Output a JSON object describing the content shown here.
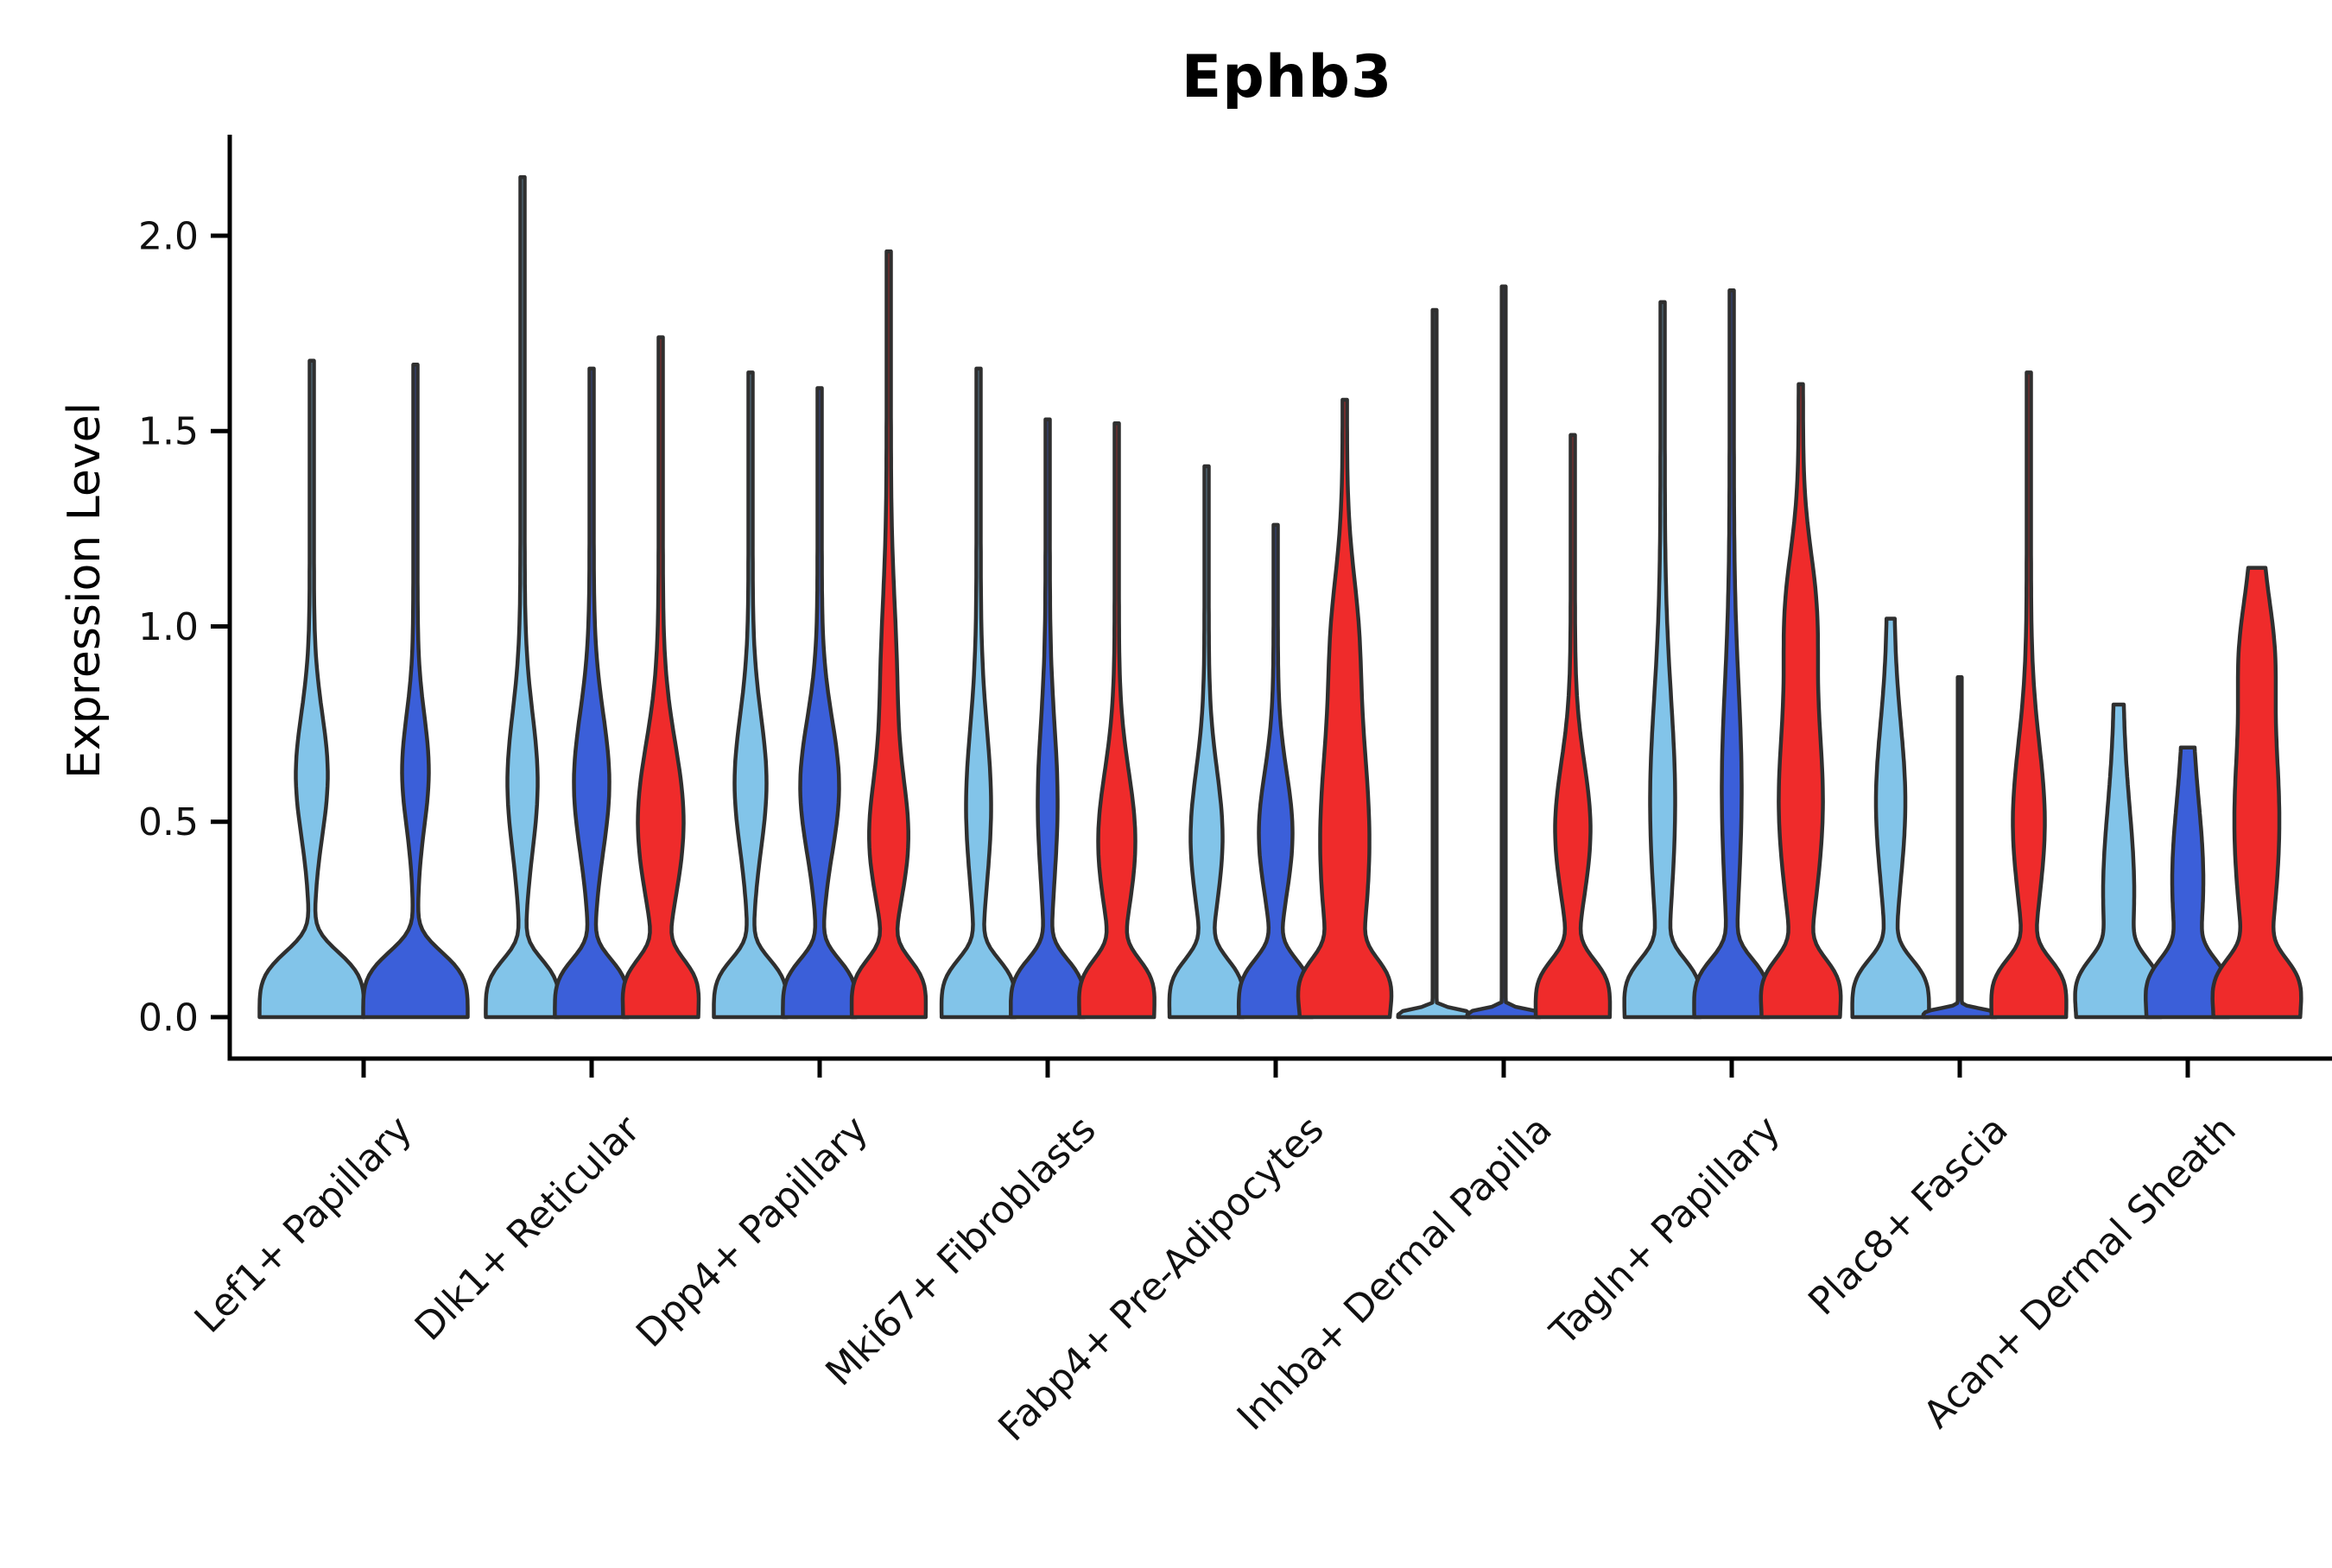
{
  "chart_data": {
    "type": "violin",
    "title": "Ephb3",
    "ylabel": "Expression Level",
    "xlabel": "",
    "ylim": [
      0.0,
      2.26
    ],
    "grid": false,
    "legend": "none",
    "yticks": [
      {
        "value": 0.0,
        "label": "0.0"
      },
      {
        "value": 0.5,
        "label": "0.5"
      },
      {
        "value": 1.0,
        "label": "1.0"
      },
      {
        "value": 1.5,
        "label": "1.5"
      },
      {
        "value": 2.0,
        "label": "2.0"
      }
    ],
    "series_colors": [
      "light_blue",
      "dark_blue",
      "red"
    ],
    "categories": [
      "Lef1+ Papillary",
      "Dlk1+ Reticular",
      "Dpp4+ Papillary",
      "Mki67+ Fibroblasts",
      "Fabp4+ Pre-Adipocytes",
      "Inhba+ Dermal Papilla",
      "Tagln+ Papillary",
      "Plac8+ Fascia",
      "Acan+ Dermal Sheath"
    ],
    "groups": [
      {
        "category": "Lef1+ Papillary",
        "violins": [
          {
            "color": "light_blue",
            "max": 1.68,
            "shape": "violin",
            "base_hw": 58,
            "base_sigma": 0.18,
            "bulges": [
              [
                0.62,
                16,
                0.22
              ]
            ],
            "tip": 2.5
          },
          {
            "color": "dark_blue",
            "max": 1.67,
            "shape": "violin",
            "base_hw": 58,
            "base_sigma": 0.18,
            "bulges": [
              [
                0.63,
                13,
                0.2
              ]
            ],
            "tip": 2.5
          }
        ]
      },
      {
        "category": "Dlk1+ Reticular",
        "violins": [
          {
            "color": "light_blue",
            "max": 2.15,
            "shape": "violin",
            "base_hw": 40,
            "base_sigma": 0.16,
            "bulges": [
              [
                0.6,
                15,
                0.25
              ]
            ],
            "tip": 2.5
          },
          {
            "color": "dark_blue",
            "max": 1.66,
            "shape": "violin",
            "base_hw": 40,
            "base_sigma": 0.16,
            "bulges": [
              [
                0.6,
                18,
                0.25
              ]
            ],
            "tip": 2.5
          },
          {
            "color": "red",
            "max": 1.74,
            "shape": "violin",
            "base_hw": 40,
            "base_sigma": 0.16,
            "bulges": [
              [
                0.5,
                24,
                0.28
              ]
            ],
            "tip": 2.5
          }
        ]
      },
      {
        "category": "Dpp4+ Papillary",
        "violins": [
          {
            "color": "light_blue",
            "max": 1.65,
            "shape": "violin",
            "base_hw": 40,
            "base_sigma": 0.16,
            "bulges": [
              [
                0.6,
                16,
                0.24
              ]
            ],
            "tip": 2.5
          },
          {
            "color": "dark_blue",
            "max": 1.61,
            "shape": "violin",
            "base_hw": 40,
            "base_sigma": 0.16,
            "bulges": [
              [
                0.59,
                20,
                0.24
              ]
            ],
            "tip": 2.5
          },
          {
            "color": "red",
            "max": 1.96,
            "shape": "violin",
            "base_hw": 40,
            "base_sigma": 0.16,
            "bulges": [
              [
                0.45,
                19,
                0.22
              ],
              [
                0.85,
                7,
                0.3
              ]
            ],
            "tip": 2.5
          }
        ]
      },
      {
        "category": "Mki67+ Fibroblasts",
        "violins": [
          {
            "color": "light_blue",
            "max": 1.66,
            "shape": "violin",
            "base_hw": 40,
            "base_sigma": 0.16,
            "bulges": [
              [
                0.54,
                12,
                0.28
              ]
            ],
            "tip": 2.5
          },
          {
            "color": "dark_blue",
            "max": 1.53,
            "shape": "violin",
            "base_hw": 40,
            "base_sigma": 0.16,
            "bulges": [
              [
                0.55,
                9,
                0.28
              ]
            ],
            "tip": 2.5
          },
          {
            "color": "red",
            "max": 1.52,
            "shape": "violin",
            "base_hw": 40,
            "base_sigma": 0.16,
            "bulges": [
              [
                0.45,
                19,
                0.25
              ]
            ],
            "tip": 2.5
          }
        ]
      },
      {
        "category": "Fabp4+ Pre-Adipocytes",
        "violins": [
          {
            "color": "light_blue",
            "max": 1.41,
            "shape": "violin",
            "base_hw": 40,
            "base_sigma": 0.16,
            "bulges": [
              [
                0.46,
                16,
                0.24
              ]
            ],
            "tip": 2.5
          },
          {
            "color": "dark_blue",
            "max": 1.26,
            "shape": "violin",
            "base_hw": 40,
            "base_sigma": 0.16,
            "bulges": [
              [
                0.47,
                17,
                0.22
              ]
            ],
            "tip": 2.5
          },
          {
            "color": "red",
            "max": 1.58,
            "shape": "violin",
            "base_hw": 40,
            "base_sigma": 0.16,
            "bulges": [
              [
                0.45,
                26,
                0.45
              ],
              [
                1.0,
                8,
                0.22
              ]
            ],
            "tip": 2.5
          }
        ]
      },
      {
        "category": "Inhba+ Dermal Papilla",
        "violins": [
          {
            "color": "light_blue",
            "max": 1.81,
            "shape": "line",
            "base_hw": 40,
            "base_sigma": 0.025,
            "bulges": [],
            "tip": 2.3
          },
          {
            "color": "dark_blue",
            "max": 1.87,
            "shape": "line",
            "base_hw": 40,
            "base_sigma": 0.025,
            "bulges": [],
            "tip": 2.3
          },
          {
            "color": "red",
            "max": 1.49,
            "shape": "violin",
            "base_hw": 40,
            "base_sigma": 0.16,
            "bulges": [
              [
                0.48,
                18,
                0.24
              ]
            ],
            "tip": 2.5
          }
        ]
      },
      {
        "category": "Tagln+ Papillary",
        "violins": [
          {
            "color": "light_blue",
            "max": 1.83,
            "shape": "violin",
            "base_hw": 40,
            "base_sigma": 0.16,
            "bulges": [
              [
                0.55,
                12,
                0.38
              ]
            ],
            "tip": 2.5
          },
          {
            "color": "dark_blue",
            "max": 1.86,
            "shape": "violin",
            "base_hw": 40,
            "base_sigma": 0.16,
            "bulges": [
              [
                0.58,
                9,
                0.38
              ]
            ],
            "tip": 2.5
          },
          {
            "color": "red",
            "max": 1.62,
            "shape": "violin",
            "base_hw": 40,
            "base_sigma": 0.16,
            "bulges": [
              [
                0.55,
                23,
                0.38
              ],
              [
                1.05,
                12,
                0.22
              ]
            ],
            "tip": 2.5
          }
        ]
      },
      {
        "category": "Plac8+ Fascia",
        "violins": [
          {
            "color": "light_blue",
            "max": 1.02,
            "shape": "violin",
            "base_hw": 40,
            "base_sigma": 0.16,
            "bulges": [
              [
                0.55,
                13,
                0.28
              ]
            ],
            "tip": 4
          },
          {
            "color": "dark_blue",
            "max": 0.87,
            "shape": "line",
            "base_hw": 40,
            "base_sigma": 0.025,
            "bulges": [],
            "tip": 2.3
          },
          {
            "color": "red",
            "max": 1.65,
            "shape": "violin",
            "base_hw": 40,
            "base_sigma": 0.16,
            "bulges": [
              [
                0.5,
                16,
                0.28
              ]
            ],
            "tip": 2.5
          }
        ]
      },
      {
        "category": "Acan+ Dermal Sheath",
        "violins": [
          {
            "color": "light_blue",
            "max": 0.8,
            "shape": "violin",
            "base_hw": 40,
            "base_sigma": 0.16,
            "bulges": [
              [
                0.32,
                13,
                0.3
              ]
            ],
            "tip": 5
          },
          {
            "color": "dark_blue",
            "max": 0.69,
            "shape": "violin",
            "base_hw": 40,
            "base_sigma": 0.16,
            "bulges": [
              [
                0.35,
                13,
                0.28
              ]
            ],
            "tip": 5
          },
          {
            "color": "red",
            "max": 1.15,
            "shape": "violin",
            "base_hw": 40,
            "base_sigma": 0.16,
            "bulges": [
              [
                0.5,
                20,
                0.4
              ],
              [
                0.95,
                9,
                0.18
              ]
            ],
            "tip": 6
          }
        ]
      }
    ]
  },
  "colors": {
    "light_blue": "#82C4E9",
    "dark_blue": "#3B5FD9",
    "red": "#EF2B2B",
    "outline": "#2F2F2F",
    "axis": "#000000",
    "text": "#111111"
  }
}
